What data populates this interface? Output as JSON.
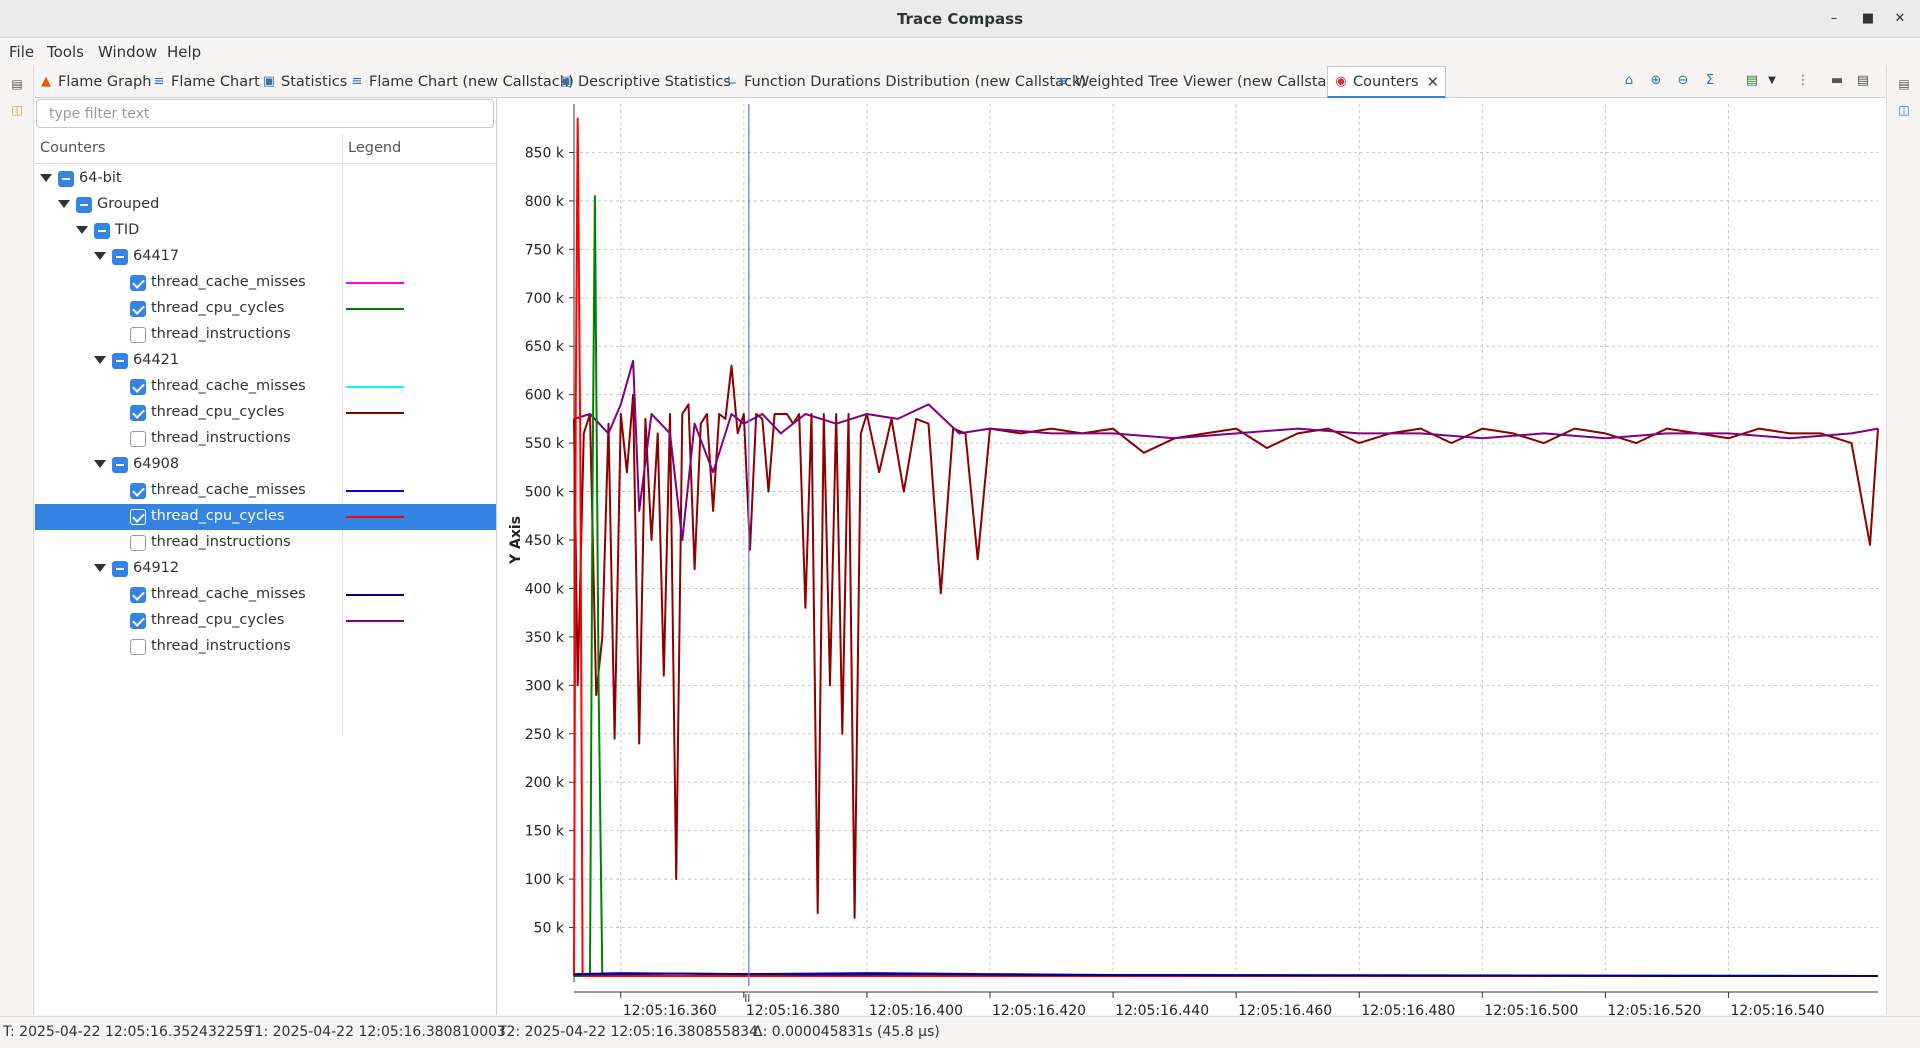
{
  "window": {
    "title": "Trace Compass"
  },
  "menu": [
    "File",
    "Tools",
    "Window",
    "Help"
  ],
  "tabs": [
    {
      "label": "Flame Graph",
      "icon": "flame-icon"
    },
    {
      "label": "Flame Chart",
      "icon": "list-icon"
    },
    {
      "label": "Statistics",
      "icon": "window-icon"
    },
    {
      "label": "Flame Chart (new Callstack)",
      "icon": "list-icon"
    },
    {
      "label": "Descriptive Statistics",
      "icon": "window-icon"
    },
    {
      "label": "Function Durations Distribution (new Callstack)",
      "icon": "chart-icon"
    },
    {
      "label": "Weighted Tree Viewer (new Callstack)",
      "icon": "list-icon"
    },
    {
      "label": "Counters",
      "icon": "counters-icon",
      "active": true
    }
  ],
  "filter": {
    "placeholder": "type filter text",
    "value": ""
  },
  "tree": {
    "col_counters": "Counters",
    "col_legend": "Legend",
    "nodes": [
      {
        "label": "64-bit",
        "level": 0,
        "type": "group",
        "state": "partial"
      },
      {
        "label": "Grouped",
        "level": 1,
        "type": "group",
        "state": "partial"
      },
      {
        "label": "TID",
        "level": 2,
        "type": "group",
        "state": "partial"
      },
      {
        "label": "64417",
        "level": 3,
        "type": "group",
        "state": "partial"
      },
      {
        "label": "thread_cache_misses",
        "level": 4,
        "type": "leaf",
        "state": "checked",
        "color": "#ff00ff"
      },
      {
        "label": "thread_cpu_cycles",
        "level": 4,
        "type": "leaf",
        "state": "checked",
        "color": "#008000"
      },
      {
        "label": "thread_instructions",
        "level": 4,
        "type": "leaf",
        "state": "unchecked"
      },
      {
        "label": "64421",
        "level": 3,
        "type": "group",
        "state": "partial"
      },
      {
        "label": "thread_cache_misses",
        "level": 4,
        "type": "leaf",
        "state": "checked",
        "color": "#00ffff"
      },
      {
        "label": "thread_cpu_cycles",
        "level": 4,
        "type": "leaf",
        "state": "checked",
        "color": "#8b0000"
      },
      {
        "label": "thread_instructions",
        "level": 4,
        "type": "leaf",
        "state": "unchecked"
      },
      {
        "label": "64908",
        "level": 3,
        "type": "group",
        "state": "partial"
      },
      {
        "label": "thread_cache_misses",
        "level": 4,
        "type": "leaf",
        "state": "checked",
        "color": "#0000ff"
      },
      {
        "label": "thread_cpu_cycles",
        "level": 4,
        "type": "leaf",
        "state": "checked",
        "color": "#ff0000",
        "selected": true
      },
      {
        "label": "thread_instructions",
        "level": 4,
        "type": "leaf",
        "state": "unchecked"
      },
      {
        "label": "64912",
        "level": 3,
        "type": "group",
        "state": "partial"
      },
      {
        "label": "thread_cache_misses",
        "level": 4,
        "type": "leaf",
        "state": "checked",
        "color": "#000080"
      },
      {
        "label": "thread_cpu_cycles",
        "level": 4,
        "type": "leaf",
        "state": "checked",
        "color": "#800080"
      },
      {
        "label": "thread_instructions",
        "level": 4,
        "type": "leaf",
        "state": "unchecked"
      }
    ]
  },
  "chart_data": {
    "type": "line",
    "ylabel": "Y Axis",
    "ylim": [
      0,
      900000
    ],
    "y_ticks": [
      "50 k",
      "100 k",
      "150 k",
      "200 k",
      "250 k",
      "300 k",
      "350 k",
      "400 k",
      "450 k",
      "500 k",
      "550 k",
      "600 k",
      "650 k",
      "700 k",
      "750 k",
      "800 k",
      "850 k"
    ],
    "y_tick_values": [
      50000,
      100000,
      150000,
      200000,
      250000,
      300000,
      350000,
      400000,
      450000,
      500000,
      550000,
      600000,
      650000,
      700000,
      750000,
      800000,
      850000
    ],
    "x_unit": "ms (12:05:16.xxx)",
    "xlim": [
      352.4,
      564.3
    ],
    "x_ticks": [
      "12:05:16.360",
      "12:05:16.380",
      "12:05:16.400",
      "12:05:16.420",
      "12:05:16.440",
      "12:05:16.460",
      "12:05:16.480",
      "12:05:16.500",
      "12:05:16.520",
      "12:05:16.540"
    ],
    "x_tick_values": [
      360,
      380,
      400,
      420,
      440,
      460,
      480,
      500,
      520,
      540
    ],
    "cursor_x": 380.81,
    "grid": true,
    "series": [
      {
        "name": "64421 thread_cpu_cycles",
        "color": "#8b0000",
        "x": [
          352.4,
          353,
          354,
          355,
          356,
          357,
          358,
          359,
          360,
          361,
          362,
          363,
          364,
          365,
          366,
          367,
          368,
          369,
          370,
          371,
          372,
          373,
          374,
          375,
          376,
          377,
          378,
          379,
          380,
          381,
          382,
          383,
          384,
          385,
          386,
          387,
          388,
          389,
          390,
          391,
          392,
          393,
          394,
          395,
          396,
          397,
          398,
          399,
          400,
          402,
          404,
          406,
          408,
          410,
          412,
          414,
          416,
          418,
          420,
          425,
          430,
          435,
          440,
          445,
          450,
          455,
          460,
          465,
          470,
          475,
          480,
          485,
          490,
          495,
          500,
          505,
          510,
          515,
          520,
          525,
          530,
          535,
          540,
          545,
          550,
          555,
          560,
          563,
          564.3
        ],
        "y": [
          575000,
          300000,
          560000,
          580000,
          290000,
          350000,
          570000,
          245000,
          580000,
          520000,
          600000,
          240000,
          575000,
          450000,
          560000,
          310000,
          580000,
          100000,
          580000,
          590000,
          420000,
          570000,
          580000,
          480000,
          580000,
          575000,
          630000,
          560000,
          580000,
          440000,
          580000,
          575000,
          500000,
          580000,
          580000,
          580000,
          570000,
          580000,
          380000,
          580000,
          65000,
          580000,
          300000,
          580000,
          250000,
          580000,
          60000,
          560000,
          580000,
          520000,
          575000,
          500000,
          575000,
          570000,
          395000,
          565000,
          560000,
          430000,
          565000,
          560000,
          565000,
          560000,
          565000,
          540000,
          555000,
          560000,
          565000,
          545000,
          560000,
          565000,
          550000,
          560000,
          565000,
          550000,
          565000,
          560000,
          550000,
          565000,
          560000,
          550000,
          565000,
          560000,
          555000,
          565000,
          560000,
          560000,
          550000,
          445000,
          565000
        ]
      },
      {
        "name": "64912 thread_cpu_cycles",
        "color": "#800080",
        "x": [
          352.4,
          355,
          358,
          360,
          362,
          363,
          365,
          368,
          370,
          372,
          375,
          378,
          380,
          383,
          386,
          390,
          395,
          400,
          405,
          410,
          415,
          420,
          430,
          440,
          450,
          460,
          470,
          480,
          490,
          500,
          510,
          520,
          530,
          540,
          550,
          560,
          564.3
        ],
        "y": [
          575000,
          580000,
          560000,
          590000,
          635000,
          480000,
          580000,
          560000,
          450000,
          570000,
          520000,
          580000,
          570000,
          580000,
          560000,
          580000,
          570000,
          580000,
          575000,
          590000,
          560000,
          565000,
          560000,
          560000,
          555000,
          560000,
          565000,
          560000,
          560000,
          555000,
          560000,
          555000,
          560000,
          560000,
          555000,
          560000,
          565000
        ]
      },
      {
        "name": "64417 thread_cpu_cycles",
        "color": "#008000",
        "x": [
          352.4,
          355,
          355.4,
          355.8,
          356.4,
          357,
          564.3
        ],
        "y": [
          0,
          0,
          500000,
          805000,
          300000,
          0,
          0
        ]
      },
      {
        "name": "64908 thread_cpu_cycles",
        "color": "#ff0000",
        "x": [
          352.4,
          352.7,
          353,
          353.4,
          353.8,
          354.2,
          564.3
        ],
        "y": [
          0,
          600000,
          885000,
          560000,
          0,
          0,
          0
        ]
      },
      {
        "name": "64908 thread_cache_misses",
        "color": "#0000ff",
        "x": [
          352.4,
          360,
          380,
          400,
          420,
          440,
          564.3
        ],
        "y": [
          2000,
          3000,
          2000,
          3000,
          2000,
          1000,
          0
        ]
      },
      {
        "name": "64912 thread_cache_misses",
        "color": "#000080",
        "x": [
          352.4,
          370,
          390,
          410,
          430,
          564.3
        ],
        "y": [
          1500,
          2500,
          1500,
          2000,
          1000,
          0
        ]
      }
    ]
  },
  "status": {
    "t": "T: 2025-04-22 12:05:16.352432259",
    "t1": "T1: 2025-04-22 12:05:16.380810003",
    "t2": "T2: 2025-04-22 12:05:16.380855834",
    "delta": "Δ: 0.000045831s (45.8 µs)"
  }
}
